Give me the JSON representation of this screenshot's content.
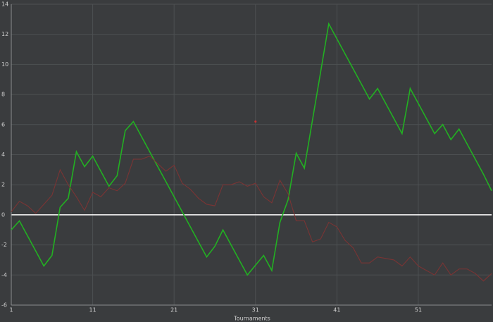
{
  "chart_data": {
    "type": "line",
    "x_label": "Tournaments",
    "x": [
      1,
      2,
      3,
      4,
      5,
      6,
      7,
      8,
      9,
      10,
      11,
      12,
      13,
      14,
      15,
      16,
      17,
      18,
      19,
      20,
      21,
      22,
      23,
      24,
      25,
      26,
      27,
      28,
      29,
      30,
      31,
      32,
      33,
      34,
      35,
      36,
      37,
      38,
      39,
      40,
      41,
      42,
      43,
      44,
      45,
      46,
      47,
      48,
      49,
      50,
      51,
      52,
      53,
      54,
      55,
      56,
      57,
      58,
      59,
      60
    ],
    "series": [
      {
        "color": "#22b022",
        "values": [
          -1.0,
          -0.4,
          -1.4,
          -2.4,
          -3.4,
          -2.7,
          0.5,
          1.1,
          4.2,
          3.2,
          3.9,
          2.9,
          1.9,
          2.6,
          5.6,
          6.2,
          5.2,
          4.2,
          3.2,
          2.2,
          1.2,
          0.2,
          -0.8,
          -1.8,
          -2.8,
          -2.1,
          -1.0,
          -2.0,
          -3.0,
          -4.0,
          -3.35,
          -2.7,
          -3.7,
          -0.5,
          1.0,
          4.1,
          3.1,
          6.3,
          9.5,
          12.7,
          11.7,
          10.7,
          9.7,
          8.7,
          7.7,
          8.4,
          7.4,
          6.4,
          5.4,
          8.4,
          7.4,
          6.4,
          5.4,
          6.0,
          5.0,
          5.7,
          4.7,
          3.7,
          2.7,
          1.6
        ]
      },
      {
        "color": "#7a3434",
        "values": [
          0.2,
          0.9,
          0.6,
          0.1,
          0.7,
          1.3,
          3.0,
          2.0,
          1.2,
          0.3,
          1.5,
          1.2,
          1.8,
          1.6,
          2.1,
          3.7,
          3.7,
          3.9,
          3.4,
          2.9,
          3.3,
          2.1,
          1.7,
          1.1,
          0.7,
          0.6,
          2.0,
          2.0,
          2.2,
          1.9,
          2.1,
          1.2,
          0.8,
          2.3,
          1.4,
          -0.4,
          -0.4,
          -1.8,
          -1.6,
          -0.5,
          -0.8,
          -1.7,
          -2.2,
          -3.2,
          -3.2,
          -2.8,
          -2.9,
          -3.0,
          -3.4,
          -2.8,
          -3.4,
          -3.7,
          -4.0,
          -3.2,
          -4.0,
          -3.6,
          -3.6,
          -3.9,
          -4.4,
          -3.9
        ]
      }
    ],
    "markers": [
      {
        "x": 31,
        "y": 6.2,
        "color": "#d03030"
      }
    ],
    "xlim": [
      1,
      60
    ],
    "ylim": [
      -6,
      14
    ],
    "xticks": [
      1,
      11,
      21,
      31,
      41,
      51
    ],
    "yticks": [
      -6,
      -4,
      -2,
      0,
      2,
      4,
      6,
      8,
      10,
      12,
      14
    ],
    "grid": true,
    "zero_line_color": "#ffffff"
  }
}
